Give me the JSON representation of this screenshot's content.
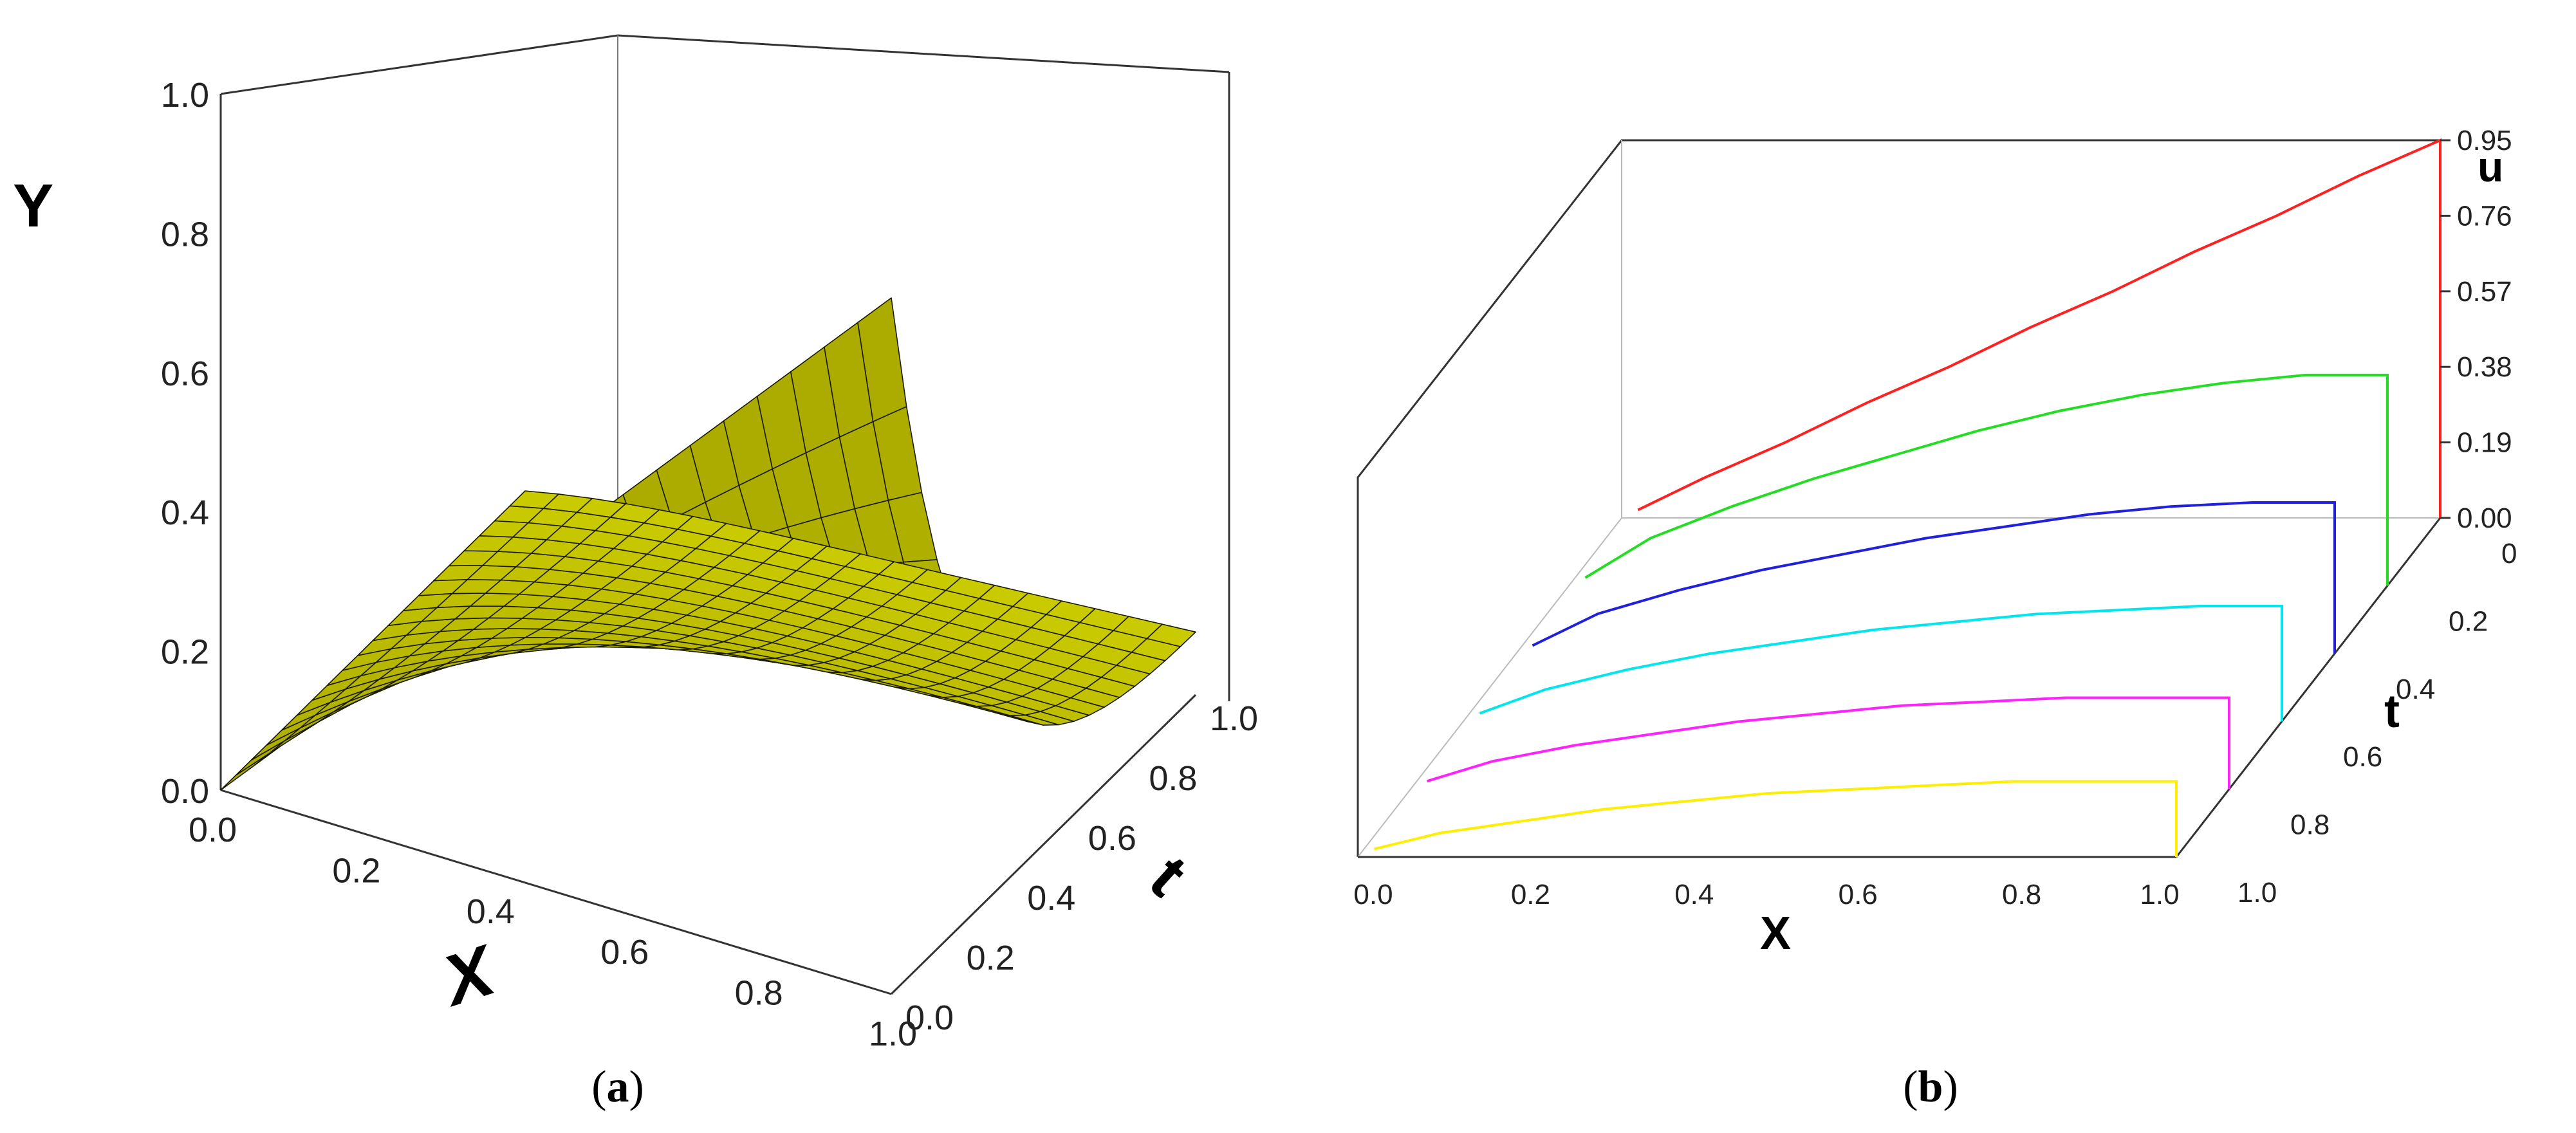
{
  "chart_data": [
    {
      "type": "surface",
      "panel_label": "a",
      "xlabel": "X",
      "ylabel": "t",
      "zlabel": "Y",
      "x_ticks": [
        "0.0",
        "0.2",
        "0.4",
        "0.6",
        "0.8",
        "1.0"
      ],
      "t_ticks": [
        "0.0",
        "0.2",
        "0.4",
        "0.6",
        "0.8",
        "1.0"
      ],
      "z_ticks": [
        "0.0",
        "0.2",
        "0.4",
        "0.6",
        "0.8",
        "1.0"
      ],
      "xlim": [
        0,
        1
      ],
      "tlim": [
        0,
        1
      ],
      "zlim": [
        0,
        1
      ],
      "surface_color": "#b3b300",
      "edge_color": "#1a1a00",
      "grid_x": 21,
      "grid_t": 21,
      "note_samples": [
        {
          "x": 0.0,
          "t": 0.0,
          "Y": 0.0
        },
        {
          "x": 1.0,
          "t": 0.0,
          "Y": 0.88
        },
        {
          "x": 0.5,
          "t": 0.0,
          "Y": 0.44
        },
        {
          "x": 1.0,
          "t": 1.0,
          "Y": 0.18
        },
        {
          "x": 0.5,
          "t": 1.0,
          "Y": 0.25
        }
      ]
    },
    {
      "type": "line",
      "panel_label": "b",
      "xlabel": "X",
      "ylabel": "t",
      "zlabel": "u",
      "x_ticks": [
        "0.0",
        "0.2",
        "0.4",
        "0.6",
        "0.8",
        "1.0"
      ],
      "t_ticks": [
        "0",
        "0.2",
        "0.4",
        "0.6",
        "0.8",
        "1.0"
      ],
      "u_ticks": [
        "0.00",
        "0.19",
        "0.38",
        "0.57",
        "0.76",
        "0.95"
      ],
      "xlim": [
        0,
        1
      ],
      "ulim": [
        0,
        0.95
      ],
      "series": [
        {
          "t": 0.0,
          "color": "#ff2020"
        },
        {
          "t": 0.2,
          "color": "#22dd22"
        },
        {
          "t": 0.4,
          "color": "#2020dd"
        },
        {
          "t": 0.6,
          "color": "#00e5ee"
        },
        {
          "t": 0.8,
          "color": "#ff22ff"
        },
        {
          "t": 1.0,
          "color": "#ffee00"
        }
      ],
      "series_values": {
        "x": [
          0.02,
          0.1,
          0.2,
          0.3,
          0.4,
          0.5,
          0.6,
          0.7,
          0.8,
          0.9,
          1.0
        ],
        "t0": [
          0.02,
          0.1,
          0.19,
          0.29,
          0.38,
          0.48,
          0.57,
          0.67,
          0.76,
          0.86,
          0.95
        ],
        "t02": [
          0.02,
          0.12,
          0.2,
          0.27,
          0.33,
          0.39,
          0.44,
          0.48,
          0.51,
          0.53,
          0.53
        ],
        "t04": [
          0.02,
          0.1,
          0.16,
          0.21,
          0.25,
          0.29,
          0.32,
          0.35,
          0.37,
          0.38,
          0.38
        ],
        "t06": [
          0.02,
          0.08,
          0.13,
          0.17,
          0.2,
          0.23,
          0.25,
          0.27,
          0.28,
          0.29,
          0.29
        ],
        "t08": [
          0.02,
          0.07,
          0.11,
          0.14,
          0.17,
          0.19,
          0.21,
          0.22,
          0.23,
          0.23,
          0.23
        ],
        "t10": [
          0.02,
          0.06,
          0.09,
          0.12,
          0.14,
          0.16,
          0.17,
          0.18,
          0.19,
          0.19,
          0.19
        ]
      }
    }
  ],
  "captions": {
    "a_open": "(",
    "a_letter": "a",
    "a_close": ")",
    "b_open": "(",
    "b_letter": "b",
    "b_close": ")"
  }
}
